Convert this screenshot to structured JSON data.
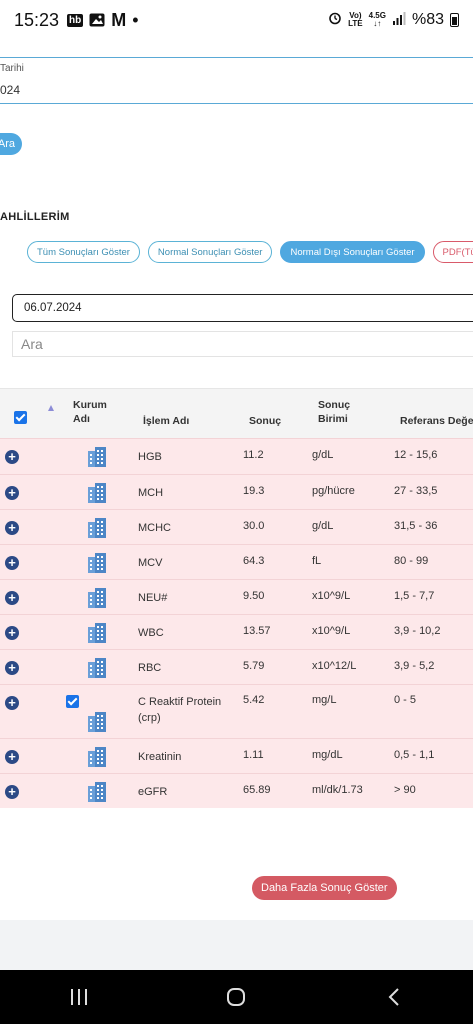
{
  "status_bar": {
    "time": "15:23",
    "hb_badge": "hb",
    "gmail_letter": "M",
    "dot": "•",
    "network_top": "Vo)",
    "network_bottom": "LTE",
    "net_type_top": "4.5G",
    "net_type_bottom": "↓↑",
    "battery": "%83"
  },
  "top_form": {
    "date_label": "Tarihi",
    "date_value_partial": "024",
    "search_button": "Ara"
  },
  "section": {
    "title": "AHLİLLERİM",
    "filters": [
      "Tüm Sonuçları Göster",
      "Normal Sonuçları Göster",
      "Normal Dışı Sonuçları Göster",
      "PDF(Türkçe"
    ],
    "date_input": "06.07.2024",
    "search_placeholder": "Ara"
  },
  "table": {
    "headers": {
      "kurum_adi_1": "Kurum",
      "kurum_adi_2": "Adı",
      "islem_adi": "İşlem Adı",
      "sonuc": "Sonuç",
      "sonuc_birimi_1": "Sonuç",
      "sonuc_birimi_2": "Birimi",
      "referans": "Referans Değe"
    },
    "rows": [
      {
        "name": "HGB",
        "name2": "",
        "result": "11.2",
        "unit": "g/dL",
        "ref": "12 - 15,6"
      },
      {
        "name": "MCH",
        "name2": "",
        "result": "19.3",
        "unit": "pg/hücre",
        "ref": "27 - 33,5"
      },
      {
        "name": "MCHC",
        "name2": "",
        "result": "30.0",
        "unit": "g/dL",
        "ref": "31,5 - 36"
      },
      {
        "name": "MCV",
        "name2": "",
        "result": "64.3",
        "unit": "fL",
        "ref": "80 - 99"
      },
      {
        "name": "NEU#",
        "name2": "",
        "result": "9.50",
        "unit": "x10^9/L",
        "ref": "1,5 - 7,7"
      },
      {
        "name": "WBC",
        "name2": "",
        "result": "13.57",
        "unit": "x10^9/L",
        "ref": "3,9 - 10,2"
      },
      {
        "name": "RBC",
        "name2": "",
        "result": "5.79",
        "unit": "x10^12/L",
        "ref": "3,9 - 5,2"
      },
      {
        "name": "C Reaktif Protein",
        "name2": "(crp)",
        "result": "5.42",
        "unit": "mg/L",
        "ref": "0 - 5"
      },
      {
        "name": "Kreatinin",
        "name2": "",
        "result": "1.11",
        "unit": "mg/dL",
        "ref": "0,5 - 1,1"
      },
      {
        "name": "eGFR",
        "name2": "",
        "result": "65.89",
        "unit": "ml/dk/1.73",
        "ref": "> 90"
      }
    ]
  },
  "more_button": "Daha Fazla Sonuç Göster",
  "nav": {
    "recents_icon": "recents-icon",
    "home_icon": "home-icon",
    "back_icon": "back-icon"
  }
}
